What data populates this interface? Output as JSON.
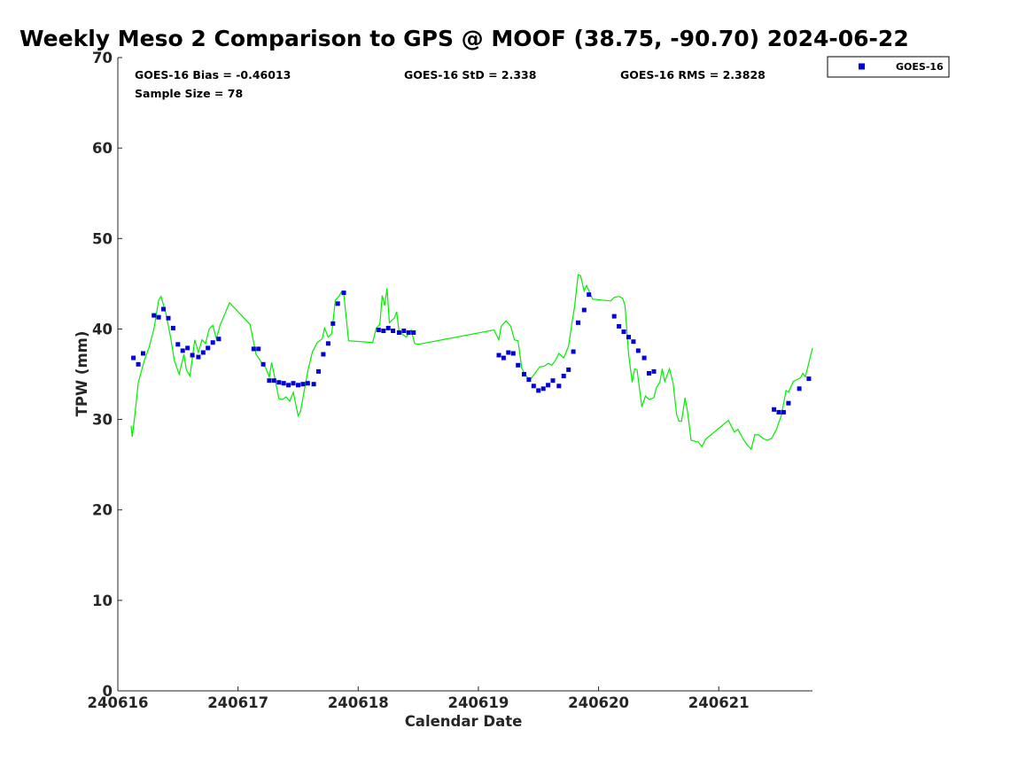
{
  "chart_data": {
    "type": "scatter",
    "title": "Weekly Meso 2 Comparison to GPS @ MOOF (38.75, -90.70) 2024-06-22",
    "xlabel": "Calendar Date",
    "ylabel": "TPW (mm)",
    "xlim": [
      240616,
      240621.78
    ],
    "ylim": [
      0,
      70
    ],
    "yticks": [
      0,
      10,
      20,
      30,
      40,
      50,
      60,
      70
    ],
    "xticks": [
      {
        "value": 240616,
        "label": "240616"
      },
      {
        "value": 240617,
        "label": "240617"
      },
      {
        "value": 240618,
        "label": "240618"
      },
      {
        "value": 240619,
        "label": "240619"
      },
      {
        "value": 240620,
        "label": "240620"
      },
      {
        "value": 240621,
        "label": "240621"
      }
    ],
    "grid": false,
    "legend": {
      "placement": "top-right",
      "entries": [
        "GOES-16"
      ]
    },
    "annotations": {
      "bias": "GOES-16 Bias = -0.46013",
      "std": "GOES-16 StD = 2.338",
      "rms": "GOES-16 RMS = 2.3828",
      "sample": "Sample Size = 78"
    },
    "colors": {
      "series": "#0000dd",
      "gps": "#00ee00",
      "axis": "#262626"
    },
    "series": [
      {
        "name": "GOES-16",
        "marker": "square",
        "points": [
          [
            240616.13,
            36.8
          ],
          [
            240616.17,
            36.1
          ],
          [
            240616.21,
            37.3
          ],
          [
            240616.3,
            41.5
          ],
          [
            240616.34,
            41.3
          ],
          [
            240616.38,
            42.2
          ],
          [
            240616.42,
            41.2
          ],
          [
            240616.46,
            40.1
          ],
          [
            240616.5,
            38.3
          ],
          [
            240616.54,
            37.6
          ],
          [
            240616.58,
            37.9
          ],
          [
            240616.62,
            37.1
          ],
          [
            240616.67,
            36.9
          ],
          [
            240616.71,
            37.4
          ],
          [
            240616.75,
            37.9
          ],
          [
            240616.79,
            38.5
          ],
          [
            240616.84,
            38.9
          ],
          [
            240617.13,
            37.8
          ],
          [
            240617.17,
            37.8
          ],
          [
            240617.21,
            36.1
          ],
          [
            240617.26,
            34.3
          ],
          [
            240617.3,
            34.3
          ],
          [
            240617.34,
            34.1
          ],
          [
            240617.38,
            34.0
          ],
          [
            240617.42,
            33.8
          ],
          [
            240617.46,
            34.0
          ],
          [
            240617.5,
            33.8
          ],
          [
            240617.54,
            33.9
          ],
          [
            240617.58,
            34.0
          ],
          [
            240617.63,
            33.9
          ],
          [
            240617.67,
            35.3
          ],
          [
            240617.71,
            37.2
          ],
          [
            240617.75,
            38.4
          ],
          [
            240617.79,
            40.6
          ],
          [
            240617.83,
            42.8
          ],
          [
            240617.88,
            44.0
          ],
          [
            240618.17,
            39.9
          ],
          [
            240618.21,
            39.8
          ],
          [
            240618.25,
            40.1
          ],
          [
            240618.29,
            39.8
          ],
          [
            240618.34,
            39.6
          ],
          [
            240618.38,
            39.8
          ],
          [
            240618.42,
            39.6
          ],
          [
            240618.46,
            39.6
          ],
          [
            240619.17,
            37.1
          ],
          [
            240619.21,
            36.8
          ],
          [
            240619.25,
            37.4
          ],
          [
            240619.29,
            37.3
          ],
          [
            240619.33,
            36.0
          ],
          [
            240619.38,
            35.0
          ],
          [
            240619.42,
            34.4
          ],
          [
            240619.46,
            33.7
          ],
          [
            240619.5,
            33.2
          ],
          [
            240619.54,
            33.4
          ],
          [
            240619.58,
            33.8
          ],
          [
            240619.62,
            34.3
          ],
          [
            240619.67,
            33.7
          ],
          [
            240619.71,
            34.8
          ],
          [
            240619.75,
            35.5
          ],
          [
            240619.79,
            37.5
          ],
          [
            240619.83,
            40.7
          ],
          [
            240619.88,
            42.1
          ],
          [
            240619.92,
            43.8
          ],
          [
            240620.13,
            41.4
          ],
          [
            240620.17,
            40.3
          ],
          [
            240620.21,
            39.7
          ],
          [
            240620.25,
            39.1
          ],
          [
            240620.29,
            38.6
          ],
          [
            240620.33,
            37.6
          ],
          [
            240620.38,
            36.8
          ],
          [
            240620.42,
            35.1
          ],
          [
            240620.46,
            35.3
          ],
          [
            240621.46,
            31.1
          ],
          [
            240621.5,
            30.8
          ],
          [
            240621.54,
            30.8
          ],
          [
            240621.58,
            31.8
          ],
          [
            240621.67,
            33.4
          ],
          [
            240621.75,
            34.5
          ]
        ]
      },
      {
        "name": "GPS",
        "line": true,
        "points": [
          [
            240616.11,
            29.3
          ],
          [
            240616.12,
            28.1
          ],
          [
            240616.14,
            30.3
          ],
          [
            240616.17,
            34.1
          ],
          [
            240616.22,
            36.5
          ],
          [
            240616.26,
            38.0
          ],
          [
            240616.3,
            40.0
          ],
          [
            240616.34,
            43.2
          ],
          [
            240616.36,
            43.6
          ],
          [
            240616.4,
            41.7
          ],
          [
            240616.44,
            39.0
          ],
          [
            240616.47,
            36.5
          ],
          [
            240616.51,
            35.0
          ],
          [
            240616.55,
            37.2
          ],
          [
            240616.57,
            35.5
          ],
          [
            240616.6,
            34.8
          ],
          [
            240616.64,
            38.8
          ],
          [
            240616.67,
            37.4
          ],
          [
            240616.7,
            38.8
          ],
          [
            240616.73,
            38.4
          ],
          [
            240616.76,
            40.0
          ],
          [
            240616.79,
            40.4
          ],
          [
            240616.82,
            38.9
          ],
          [
            240616.85,
            40.4
          ],
          [
            240616.93,
            42.9
          ],
          [
            240617.1,
            40.5
          ],
          [
            240617.15,
            37.2
          ],
          [
            240617.19,
            36.4
          ],
          [
            240617.23,
            35.7
          ],
          [
            240617.26,
            34.7
          ],
          [
            240617.28,
            36.3
          ],
          [
            240617.3,
            35.0
          ],
          [
            240617.34,
            32.3
          ],
          [
            240617.37,
            32.2
          ],
          [
            240617.4,
            32.5
          ],
          [
            240617.43,
            32.0
          ],
          [
            240617.46,
            33.0
          ],
          [
            240617.5,
            30.4
          ],
          [
            240617.52,
            30.9
          ],
          [
            240617.58,
            35.3
          ],
          [
            240617.62,
            37.5
          ],
          [
            240617.66,
            38.5
          ],
          [
            240617.7,
            38.9
          ],
          [
            240617.72,
            40.1
          ],
          [
            240617.75,
            39.1
          ],
          [
            240617.78,
            39.5
          ],
          [
            240617.81,
            43.2
          ],
          [
            240617.84,
            43.6
          ],
          [
            240617.86,
            44.1
          ],
          [
            240617.88,
            43.9
          ],
          [
            240617.92,
            38.7
          ],
          [
            240618.12,
            38.5
          ],
          [
            240618.15,
            40.1
          ],
          [
            240618.18,
            40.5
          ],
          [
            240618.2,
            43.7
          ],
          [
            240618.22,
            42.6
          ],
          [
            240618.24,
            44.5
          ],
          [
            240618.26,
            40.7
          ],
          [
            240618.3,
            41.2
          ],
          [
            240618.32,
            41.9
          ],
          [
            240618.34,
            39.7
          ],
          [
            240618.37,
            39.4
          ],
          [
            240618.4,
            39.1
          ],
          [
            240618.44,
            39.9
          ],
          [
            240618.47,
            38.4
          ],
          [
            240618.5,
            38.3
          ],
          [
            240619.13,
            39.9
          ],
          [
            240619.17,
            38.8
          ],
          [
            240619.19,
            40.3
          ],
          [
            240619.23,
            40.9
          ],
          [
            240619.27,
            40.3
          ],
          [
            240619.3,
            38.8
          ],
          [
            240619.33,
            38.7
          ],
          [
            240619.36,
            35.7
          ],
          [
            240619.39,
            34.9
          ],
          [
            240619.43,
            34.4
          ],
          [
            240619.47,
            35.1
          ],
          [
            240619.51,
            35.8
          ],
          [
            240619.55,
            35.9
          ],
          [
            240619.58,
            36.2
          ],
          [
            240619.61,
            36.0
          ],
          [
            240619.64,
            36.5
          ],
          [
            240619.67,
            37.3
          ],
          [
            240619.71,
            36.8
          ],
          [
            240619.75,
            38.1
          ],
          [
            240619.78,
            40.8
          ],
          [
            240619.8,
            42.4
          ],
          [
            240619.83,
            46.0
          ],
          [
            240619.85,
            45.9
          ],
          [
            240619.88,
            44.2
          ],
          [
            240619.9,
            44.8
          ],
          [
            240619.95,
            43.3
          ],
          [
            240620.1,
            43.1
          ],
          [
            240620.13,
            43.5
          ],
          [
            240620.17,
            43.6
          ],
          [
            240620.2,
            43.4
          ],
          [
            240620.22,
            42.6
          ],
          [
            240620.25,
            37.2
          ],
          [
            240620.28,
            34.1
          ],
          [
            240620.3,
            35.6
          ],
          [
            240620.32,
            35.5
          ],
          [
            240620.36,
            31.4
          ],
          [
            240620.39,
            32.6
          ],
          [
            240620.42,
            32.2
          ],
          [
            240620.46,
            32.4
          ],
          [
            240620.48,
            33.5
          ],
          [
            240620.51,
            34.1
          ],
          [
            240620.53,
            35.6
          ],
          [
            240620.55,
            34.2
          ],
          [
            240620.59,
            35.6
          ],
          [
            240620.62,
            34.0
          ],
          [
            240620.65,
            30.5
          ],
          [
            240620.67,
            29.8
          ],
          [
            240620.69,
            29.8
          ],
          [
            240620.72,
            32.4
          ],
          [
            240620.74,
            30.9
          ],
          [
            240620.77,
            27.7
          ],
          [
            240620.83,
            27.5
          ],
          [
            240620.86,
            27.0
          ],
          [
            240620.89,
            27.8
          ],
          [
            240621.08,
            29.9
          ],
          [
            240621.13,
            28.6
          ],
          [
            240621.16,
            28.9
          ],
          [
            240621.2,
            27.9
          ],
          [
            240621.23,
            27.3
          ],
          [
            240621.27,
            26.7
          ],
          [
            240621.3,
            28.3
          ],
          [
            240621.33,
            28.3
          ],
          [
            240621.37,
            27.9
          ],
          [
            240621.4,
            27.7
          ],
          [
            240621.44,
            27.9
          ],
          [
            240621.48,
            28.9
          ],
          [
            240621.52,
            30.4
          ],
          [
            240621.56,
            33.2
          ],
          [
            240621.58,
            33.0
          ],
          [
            240621.62,
            34.2
          ],
          [
            240621.68,
            34.6
          ],
          [
            240621.7,
            35.1
          ],
          [
            240621.72,
            34.7
          ],
          [
            240621.78,
            37.9
          ]
        ]
      }
    ]
  }
}
